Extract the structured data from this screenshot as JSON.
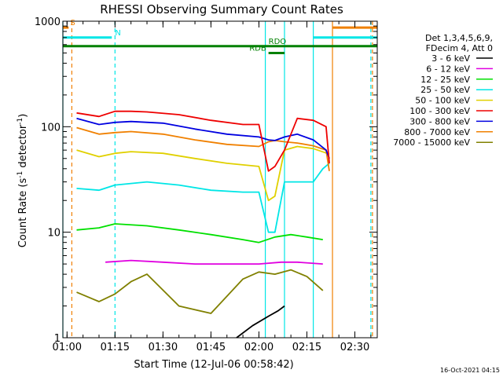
{
  "chart_data": {
    "type": "line",
    "title": "RHESSI Observing Summary Count Rates",
    "xlabel": "Start Time (12-Jul-06 00:58:42)",
    "ylabel_main": "Count Rate (s",
    "ylabel_sup1": "-1",
    "ylabel_mid": " detector",
    "ylabel_sup2": "-1",
    "ylabel_end": ")",
    "yscale": "log",
    "ylim": [
      1,
      1000
    ],
    "xlim": [
      "00:58:42",
      "02:37:00"
    ],
    "x_ticks": [
      "01:00",
      "01:15",
      "01:30",
      "01:45",
      "02:00",
      "02:15",
      "02:30"
    ],
    "y_ticks": [
      {
        "label": "1",
        "value": 1
      },
      {
        "label": "10",
        "value": 10
      },
      {
        "label": "100",
        "value": 100
      },
      {
        "label": "1000",
        "value": 1000
      }
    ],
    "grid": false,
    "legend_header": [
      "Det 1,3,4,5,6,9,",
      "FDecim 4, Att 0"
    ],
    "legend_placement": "right",
    "footer_timestamp": "16-Oct-2021 04:15",
    "series": [
      {
        "name": "3 - 6 keV",
        "color": "#000000",
        "x": [
          "01:53",
          "01:58",
          "02:03",
          "02:06",
          "02:08"
        ],
        "values": [
          1,
          1.3,
          1.6,
          1.8,
          2.0
        ]
      },
      {
        "name": "6 - 12 keV",
        "color": "#e000e0",
        "x": [
          "01:12",
          "01:20",
          "01:30",
          "01:40",
          "01:50",
          "02:00",
          "02:07",
          "02:12",
          "02:20"
        ],
        "values": [
          5.2,
          5.4,
          5.2,
          5.0,
          5.0,
          5.0,
          5.2,
          5.2,
          5.0
        ]
      },
      {
        "name": "12 - 25 keV",
        "color": "#00e000",
        "x": [
          "01:03",
          "01:10",
          "01:15",
          "01:25",
          "01:35",
          "01:45",
          "01:55",
          "02:00",
          "02:05",
          "02:10",
          "02:15",
          "02:20"
        ],
        "values": [
          10.5,
          11.0,
          12.0,
          11.5,
          10.5,
          9.5,
          8.5,
          8.0,
          9.0,
          9.5,
          9.0,
          8.5
        ]
      },
      {
        "name": "25 - 50 keV",
        "color": "#00e6e6",
        "x": [
          "01:03",
          "01:10",
          "01:15",
          "01:20",
          "01:25",
          "01:35",
          "01:45",
          "01:55",
          "02:00",
          "02:03",
          "02:05",
          "02:08",
          "02:12",
          "02:17",
          "02:20",
          "02:22"
        ],
        "values": [
          26,
          25,
          28,
          29,
          30,
          28,
          25,
          24,
          24,
          10,
          10,
          30,
          30,
          30,
          40,
          45
        ]
      },
      {
        "name": "50 - 100 keV",
        "color": "#e0d000",
        "x": [
          "01:03",
          "01:10",
          "01:15",
          "01:20",
          "01:30",
          "01:40",
          "01:50",
          "02:00",
          "02:03",
          "02:05",
          "02:08",
          "02:12",
          "02:17",
          "02:22"
        ],
        "values": [
          60,
          52,
          56,
          58,
          56,
          50,
          45,
          42,
          20,
          22,
          60,
          65,
          62,
          55
        ]
      },
      {
        "name": "100 - 300 keV",
        "color": "#ee0000",
        "x": [
          "01:03",
          "01:10",
          "01:15",
          "01:20",
          "01:25",
          "01:35",
          "01:45",
          "01:55",
          "02:00",
          "02:03",
          "02:05",
          "02:08",
          "02:12",
          "02:17",
          "02:21",
          "02:22"
        ],
        "values": [
          135,
          125,
          140,
          140,
          138,
          130,
          115,
          105,
          105,
          38,
          42,
          60,
          120,
          115,
          100,
          45
        ]
      },
      {
        "name": "300 - 800 keV",
        "color": "#0000e0",
        "x": [
          "01:03",
          "01:10",
          "01:15",
          "01:20",
          "01:30",
          "01:40",
          "01:50",
          "02:00",
          "02:03",
          "02:05",
          "02:08",
          "02:12",
          "02:17",
          "02:21",
          "02:22"
        ],
        "values": [
          120,
          105,
          110,
          112,
          108,
          95,
          85,
          80,
          75,
          74,
          80,
          85,
          75,
          60,
          50
        ]
      },
      {
        "name": "800 - 7000 keV",
        "color": "#f08000",
        "x": [
          "01:03",
          "01:10",
          "01:15",
          "01:20",
          "01:30",
          "01:40",
          "01:50",
          "02:00",
          "02:03",
          "02:05",
          "02:08",
          "02:12",
          "02:17",
          "02:21",
          "02:22"
        ],
        "values": [
          98,
          85,
          88,
          90,
          85,
          75,
          68,
          65,
          72,
          74,
          72,
          70,
          66,
          60,
          38
        ]
      },
      {
        "name": "7000 - 15000 keV",
        "color": "#808000",
        "x": [
          "01:03",
          "01:10",
          "01:15",
          "01:20",
          "01:25",
          "01:35",
          "01:45",
          "01:55",
          "02:00",
          "02:05",
          "02:10",
          "02:15",
          "02:20"
        ],
        "values": [
          2.7,
          2.2,
          2.6,
          3.4,
          4.0,
          2.0,
          1.7,
          3.6,
          4.2,
          4.0,
          4.4,
          3.8,
          2.8
        ]
      }
    ],
    "flag_bars": [
      {
        "label": "S",
        "color": "#f08000",
        "x_start": "00:58:42",
        "x_end": "01:00:30",
        "value": 870,
        "label_x": "01:01"
      },
      {
        "label": "N",
        "color": "#00e6e6",
        "x_start": "00:58:42",
        "x_end": "01:14:00",
        "value": 700,
        "label_x": "01:15"
      },
      {
        "label": "RDB",
        "color": "#008000",
        "x_start": "02:03:00",
        "x_end": "02:08:00",
        "value": 500,
        "label_x": "01:57"
      },
      {
        "label": "RDO",
        "color": "#008000",
        "x_start": "00:58:42",
        "x_end": "02:37:00",
        "value": 580,
        "label_x": "02:03"
      }
    ],
    "flag_segments": [
      {
        "color": "#00e6e6",
        "x_start": "02:17:00",
        "x_end": "02:37:00",
        "value": 700
      },
      {
        "color": "#f08000",
        "x_start": "02:23:00",
        "x_end": "02:37:00",
        "value": 870
      }
    ],
    "vlines": [
      {
        "x": "00:58:42",
        "color": "#00e6e6",
        "style": "solid"
      },
      {
        "x": "01:01:30",
        "color": "#f08000",
        "style": "dashed"
      },
      {
        "x": "01:15:00",
        "color": "#00e6e6",
        "style": "dashed"
      },
      {
        "x": "02:02:00",
        "color": "#00e6e6",
        "style": "solid"
      },
      {
        "x": "02:08:00",
        "color": "#00e6e6",
        "style": "solid"
      },
      {
        "x": "02:17:00",
        "color": "#00e6e6",
        "style": "solid"
      },
      {
        "x": "02:23:00",
        "color": "#f08000",
        "style": "solid"
      },
      {
        "x": "02:35:00",
        "color": "#00e6e6",
        "style": "dashed"
      },
      {
        "x": "02:35:30",
        "color": "#f08000",
        "style": "dashed"
      }
    ]
  }
}
